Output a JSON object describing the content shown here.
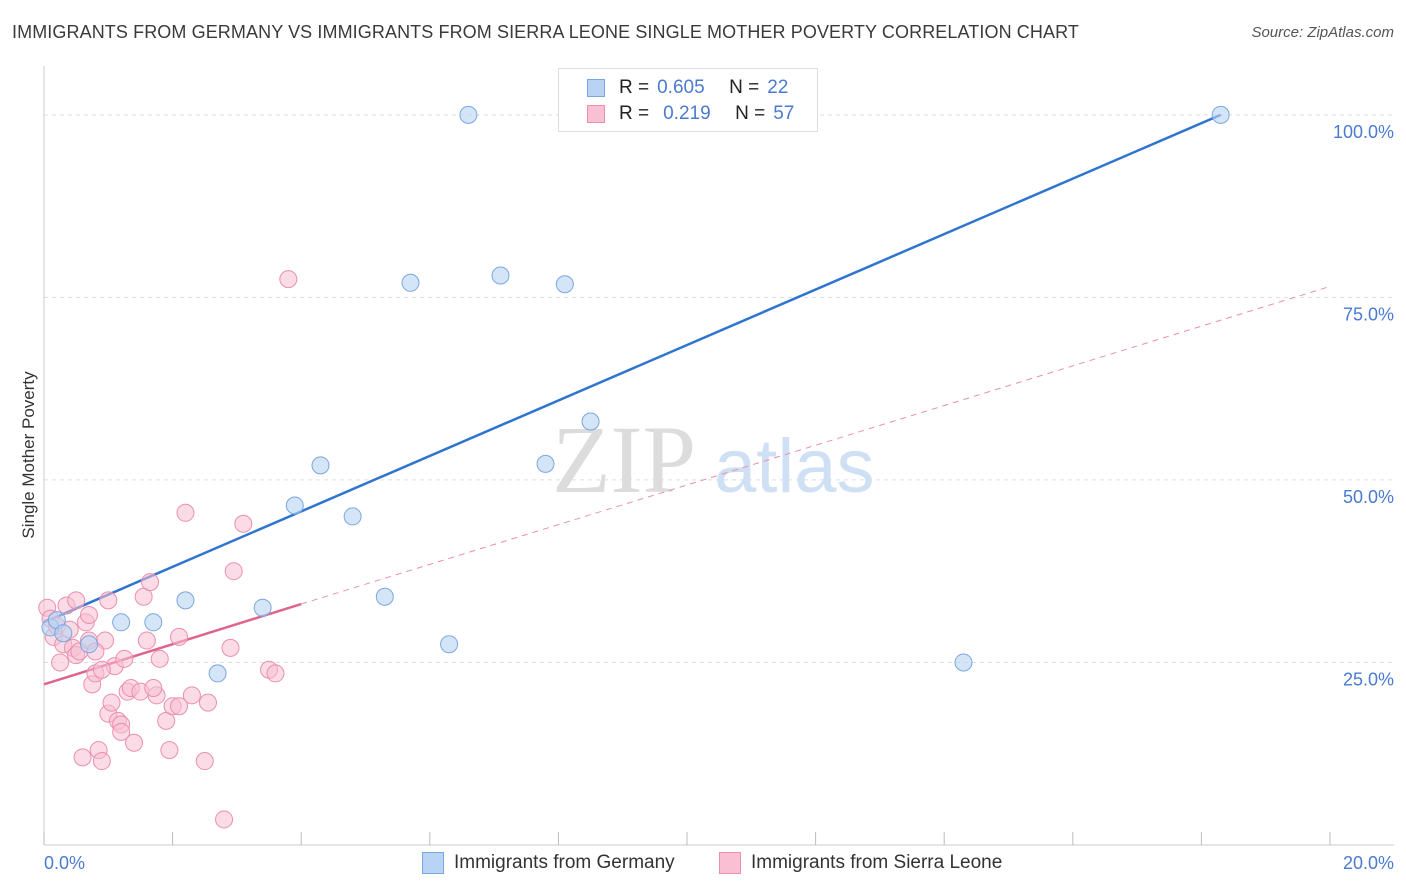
{
  "title": "IMMIGRANTS FROM GERMANY VS IMMIGRANTS FROM SIERRA LEONE SINGLE MOTHER POVERTY CORRELATION CHART",
  "source": "Source: ZipAtlas.com",
  "watermark": {
    "zip": "ZIP",
    "atlas": "atlas"
  },
  "colors": {
    "germany_fill": "#b8d3f3",
    "germany_stroke": "#7aa7e0",
    "germany_line": "#2f74d0",
    "sierra_fill": "#f8c0d2",
    "sierra_stroke": "#eb8fae",
    "sierra_line": "#e0648e",
    "grid": "#dddddd",
    "tick_text": "#4a7bd0"
  },
  "legend": {
    "rows": [
      {
        "r_label": "R =",
        "r_value": "0.605",
        "n_label": "N =",
        "n_value": "22"
      },
      {
        "r_label": "R =",
        "r_value": "0.219",
        "n_label": "N =",
        "n_value": "57"
      }
    ]
  },
  "chart_data": {
    "type": "scatter",
    "title": "IMMIGRANTS FROM GERMANY VS IMMIGRANTS FROM SIERRA LEONE SINGLE MOTHER POVERTY CORRELATION CHART",
    "xlabel": "",
    "ylabel": "Single Mother Poverty",
    "xlim": [
      0,
      20
    ],
    "ylim": [
      0,
      100
    ],
    "x_tick_labels": [
      "0.0%",
      "20.0%"
    ],
    "y_ticks": [
      25,
      50,
      75,
      100
    ],
    "y_tick_labels": [
      "25.0%",
      "50.0%",
      "75.0%",
      "100.0%"
    ],
    "series": [
      {
        "name": "Immigrants from Germany",
        "r": 0.605,
        "n": 22,
        "trend": {
          "x": [
            0.0,
            18.3
          ],
          "y": [
            30.5,
            100.0
          ],
          "dashed_extension": false
        },
        "points": [
          {
            "x": 0.1,
            "y": 29.8
          },
          {
            "x": 0.2,
            "y": 30.8
          },
          {
            "x": 0.3,
            "y": 29.0
          },
          {
            "x": 0.7,
            "y": 27.5
          },
          {
            "x": 1.2,
            "y": 30.5
          },
          {
            "x": 1.7,
            "y": 30.5
          },
          {
            "x": 2.2,
            "y": 33.5
          },
          {
            "x": 2.7,
            "y": 23.5
          },
          {
            "x": 3.4,
            "y": 32.5
          },
          {
            "x": 3.9,
            "y": 46.5
          },
          {
            "x": 4.3,
            "y": 52.0
          },
          {
            "x": 4.8,
            "y": 45.0
          },
          {
            "x": 5.3,
            "y": 34.0
          },
          {
            "x": 5.7,
            "y": 77.0
          },
          {
            "x": 6.3,
            "y": 27.5
          },
          {
            "x": 6.6,
            "y": 100.0
          },
          {
            "x": 7.1,
            "y": 78.0
          },
          {
            "x": 7.8,
            "y": 52.2
          },
          {
            "x": 8.1,
            "y": 76.8
          },
          {
            "x": 8.5,
            "y": 58.0
          },
          {
            "x": 14.3,
            "y": 25.0
          },
          {
            "x": 18.3,
            "y": 100.0
          }
        ]
      },
      {
        "name": "Immigrants from Sierra Leone",
        "r": 0.219,
        "n": 57,
        "trend": {
          "x": [
            0.0,
            4.0
          ],
          "y": [
            22.0,
            33.0
          ],
          "dashed_extension": {
            "x": [
              4.0,
              20.0
            ],
            "y": [
              33.0,
              76.5
            ]
          }
        },
        "points": [
          {
            "x": 0.05,
            "y": 32.5
          },
          {
            "x": 0.1,
            "y": 31.0
          },
          {
            "x": 0.15,
            "y": 28.5
          },
          {
            "x": 0.2,
            "y": 30.0
          },
          {
            "x": 0.25,
            "y": 25.0
          },
          {
            "x": 0.3,
            "y": 27.5
          },
          {
            "x": 0.35,
            "y": 32.8
          },
          {
            "x": 0.4,
            "y": 29.5
          },
          {
            "x": 0.45,
            "y": 27.0
          },
          {
            "x": 0.5,
            "y": 26.0
          },
          {
            "x": 0.55,
            "y": 26.5
          },
          {
            "x": 0.6,
            "y": 12.0
          },
          {
            "x": 0.65,
            "y": 30.5
          },
          {
            "x": 0.7,
            "y": 28.0
          },
          {
            "x": 0.75,
            "y": 22.0
          },
          {
            "x": 0.8,
            "y": 23.5
          },
          {
            "x": 0.85,
            "y": 13.0
          },
          {
            "x": 0.9,
            "y": 11.5
          },
          {
            "x": 0.95,
            "y": 28.0
          },
          {
            "x": 0.7,
            "y": 31.5
          },
          {
            "x": 0.8,
            "y": 26.5
          },
          {
            "x": 1.0,
            "y": 33.5
          },
          {
            "x": 1.0,
            "y": 18.0
          },
          {
            "x": 1.05,
            "y": 19.5
          },
          {
            "x": 1.1,
            "y": 24.5
          },
          {
            "x": 1.15,
            "y": 17.0
          },
          {
            "x": 1.2,
            "y": 16.5
          },
          {
            "x": 1.25,
            "y": 25.5
          },
          {
            "x": 1.3,
            "y": 21.0
          },
          {
            "x": 1.35,
            "y": 21.5
          },
          {
            "x": 1.2,
            "y": 15.5
          },
          {
            "x": 1.4,
            "y": 14.0
          },
          {
            "x": 1.5,
            "y": 21.0
          },
          {
            "x": 1.55,
            "y": 34.0
          },
          {
            "x": 1.6,
            "y": 28.0
          },
          {
            "x": 1.65,
            "y": 36.0
          },
          {
            "x": 1.75,
            "y": 20.5
          },
          {
            "x": 1.8,
            "y": 25.5
          },
          {
            "x": 1.9,
            "y": 17.0
          },
          {
            "x": 1.95,
            "y": 13.0
          },
          {
            "x": 2.0,
            "y": 19.0
          },
          {
            "x": 2.1,
            "y": 28.5
          },
          {
            "x": 2.2,
            "y": 45.5
          },
          {
            "x": 2.3,
            "y": 20.5
          },
          {
            "x": 2.1,
            "y": 19.0
          },
          {
            "x": 2.5,
            "y": 11.5
          },
          {
            "x": 2.55,
            "y": 19.5
          },
          {
            "x": 2.8,
            "y": 3.5
          },
          {
            "x": 2.9,
            "y": 27.0
          },
          {
            "x": 2.95,
            "y": 37.5
          },
          {
            "x": 3.1,
            "y": 44.0
          },
          {
            "x": 3.5,
            "y": 24.0
          },
          {
            "x": 3.6,
            "y": 23.5
          },
          {
            "x": 3.8,
            "y": 77.5
          },
          {
            "x": 1.7,
            "y": 21.5
          },
          {
            "x": 0.5,
            "y": 33.5
          },
          {
            "x": 0.9,
            "y": 24.0
          }
        ]
      }
    ]
  },
  "bottom_legend": [
    {
      "label": "Immigrants from Germany"
    },
    {
      "label": "Immigrants from Sierra Leone"
    }
  ]
}
